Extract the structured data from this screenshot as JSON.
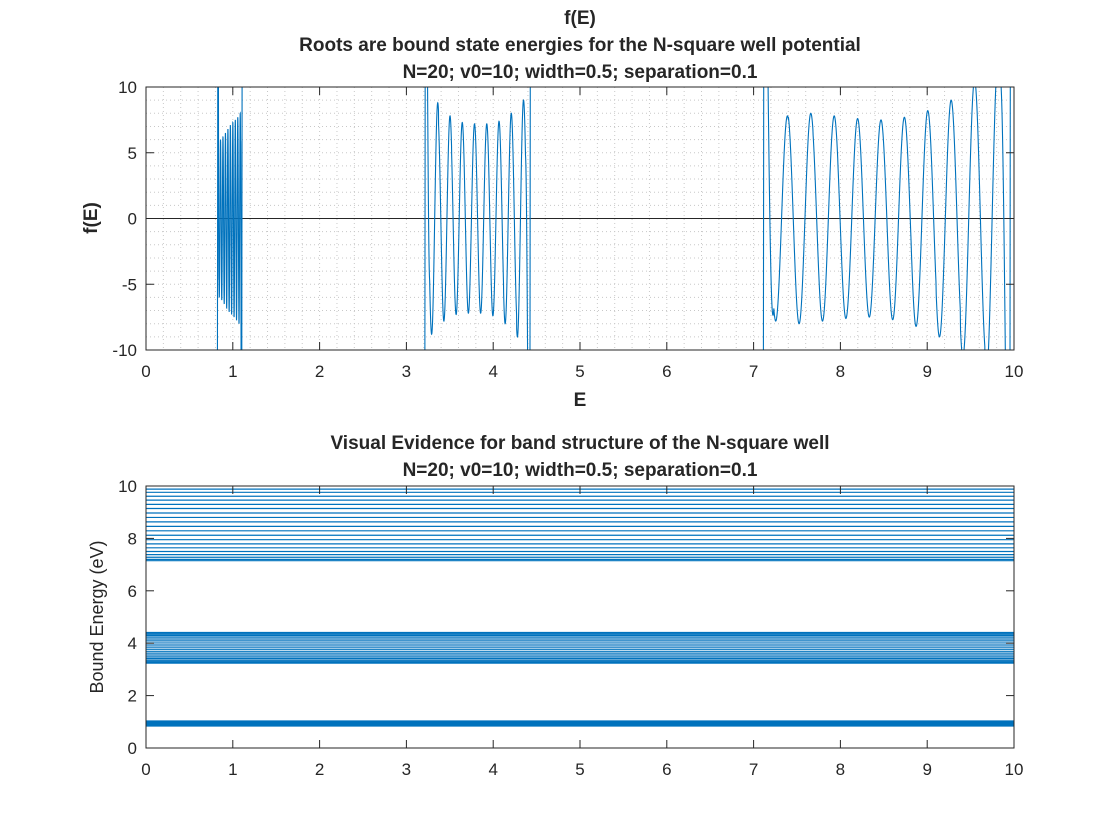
{
  "chart_data": [
    {
      "type": "line",
      "title_lines": [
        "f(E)",
        "Roots are bound state energies for the N-square well potential",
        "N=20; v0=10; width=0.5; separation=0.1"
      ],
      "xlabel": "E",
      "ylabel": "f(E)",
      "xlim": [
        0,
        10
      ],
      "ylim": [
        -10,
        10
      ],
      "xticks": [
        "0",
        "1",
        "2",
        "3",
        "4",
        "5",
        "6",
        "7",
        "8",
        "9",
        "10"
      ],
      "yticks": [
        "-10",
        "-5",
        "0",
        "5",
        "10"
      ],
      "ytick_values": [
        -10,
        -5,
        0,
        5,
        10
      ],
      "grid": "minor-dotted",
      "reference_line_y": 0,
      "series_color": "#0072BD",
      "bands": [
        {
          "start": 0.83,
          "end": 1.1,
          "n_osc": 9,
          "amps": [
            6.0,
            6.2,
            6.5,
            6.8,
            7.1,
            7.3,
            7.5,
            7.7,
            8.0
          ],
          "edge_blowup": true
        },
        {
          "start": 3.22,
          "end": 4.42,
          "n_osc": 8,
          "amps": [
            8.8,
            7.8,
            7.3,
            7.2,
            7.2,
            7.4,
            8.0,
            9.0
          ],
          "edge_blowup": true
        },
        {
          "start": 7.12,
          "end": 9.95,
          "n_osc": 10,
          "amps": [
            7.8,
            8.0,
            7.8,
            7.6,
            7.5,
            7.7,
            8.2,
            9.0,
            10.5,
            12.0
          ],
          "edge_blowup": true
        }
      ]
    },
    {
      "type": "line",
      "title_lines": [
        "Visual Evidence for band structure of the N-square well",
        "N=20; v0=10; width=0.5; separation=0.1"
      ],
      "xlabel": "",
      "ylabel": "Bound Energy (eV)",
      "xlim": [
        0,
        10
      ],
      "ylim": [
        0,
        10
      ],
      "xticks": [
        "0",
        "1",
        "2",
        "3",
        "4",
        "5",
        "6",
        "7",
        "8",
        "9",
        "10"
      ],
      "yticks": [
        "0",
        "2",
        "4",
        "6",
        "8",
        "10"
      ],
      "ytick_values": [
        0,
        2,
        4,
        6,
        8,
        10
      ],
      "series_color": "#0072BD",
      "bound_energies": [
        0.84,
        0.85,
        0.86,
        0.87,
        0.88,
        0.89,
        0.9,
        0.91,
        0.92,
        0.93,
        0.94,
        0.95,
        0.96,
        0.97,
        0.98,
        0.99,
        1.0,
        1.01,
        1.02,
        1.03,
        3.24,
        3.27,
        3.31,
        3.36,
        3.42,
        3.48,
        3.55,
        3.62,
        3.69,
        3.77,
        3.85,
        3.93,
        4.01,
        4.09,
        4.16,
        4.23,
        4.29,
        4.34,
        4.38,
        4.41,
        7.15,
        7.2,
        7.28,
        7.38,
        7.5,
        7.64,
        7.79,
        7.95,
        8.12,
        8.29,
        8.46,
        8.63,
        8.8,
        8.97,
        9.14,
        9.3,
        9.46,
        9.61,
        9.76,
        9.88
      ]
    }
  ]
}
